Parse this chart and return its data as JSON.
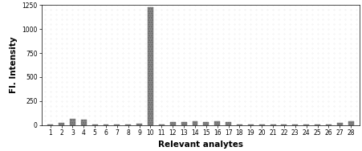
{
  "categories": [
    1,
    2,
    3,
    4,
    5,
    6,
    7,
    8,
    9,
    10,
    11,
    12,
    13,
    14,
    15,
    16,
    17,
    18,
    19,
    20,
    21,
    22,
    23,
    24,
    25,
    26,
    27,
    28
  ],
  "values": [
    5,
    20,
    65,
    55,
    8,
    10,
    8,
    10,
    12,
    1230,
    8,
    30,
    30,
    40,
    30,
    40,
    35,
    8,
    8,
    8,
    8,
    8,
    10,
    8,
    8,
    8,
    20,
    40
  ],
  "bar_color": "#888888",
  "xlabel": "Relevant analytes",
  "ylabel": "Fl. Intensity",
  "ylim": [
    0,
    1250
  ],
  "yticks": [
    0,
    250,
    500,
    750,
    1000,
    1250
  ],
  "background_color": "#ffffff",
  "tick_fontsize": 5.5,
  "label_fontsize": 7.5,
  "dot_bg_color": "#e8e8e8"
}
